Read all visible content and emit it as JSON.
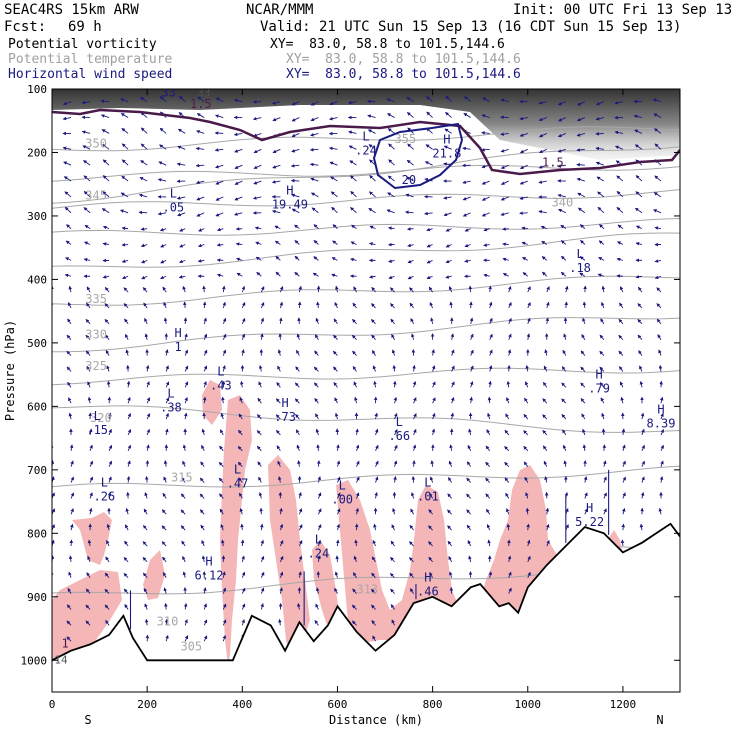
{
  "header": {
    "model": "SEAC4RS 15km ARW",
    "org": "NCAR/MMM",
    "init": "Init: 00 UTC Fri 13 Sep 13",
    "fcst_label": "Fcst:",
    "fcst_value": "69 h",
    "valid": "Valid: 21 UTC Sun 15 Sep 13 (16 CDT Sun 15 Sep 13)",
    "fields": [
      {
        "name": "Potential vorticity",
        "xy": "XY=  83.0, 58.8 to 101.5,144.6",
        "color": "#000000"
      },
      {
        "name": "Potential temperature",
        "xy": "XY=  83.0, 58.8 to 101.5,144.6",
        "color": "#a0a0a0"
      },
      {
        "name": "Horizontal wind speed",
        "xy": "XY=  83.0, 58.8 to 101.5,144.6",
        "color": "#1a1a80"
      }
    ]
  },
  "chart_data": {
    "type": "cross-section",
    "xlabel": "Distance (km)",
    "ylabel": "Pressure (hPa)",
    "xlim": [
      0,
      1320
    ],
    "ylim": [
      1050,
      100
    ],
    "x_ticks": [
      0,
      200,
      400,
      600,
      800,
      1000,
      1200
    ],
    "y_ticks": [
      100,
      200,
      300,
      400,
      500,
      600,
      700,
      800,
      900,
      1000
    ],
    "end_labels": {
      "left": "S",
      "right": "N"
    },
    "colors": {
      "pv_fill": "#f4b6b6",
      "pv_line": "#4a1a4a",
      "theta": "#a8a8a8",
      "wind": "#1a1a80",
      "terrain": "#000000"
    },
    "terrain_surface_hPa": {
      "x_km": [
        0,
        40,
        80,
        120,
        150,
        170,
        200,
        300,
        380,
        420,
        460,
        490,
        520,
        550,
        580,
        600,
        640,
        680,
        720,
        760,
        800,
        840,
        880,
        900,
        940,
        960,
        980,
        1000,
        1040,
        1080,
        1120,
        1160,
        1200,
        1240,
        1270,
        1300,
        1320
      ],
      "p_hPa": [
        1000,
        985,
        975,
        960,
        930,
        965,
        1000,
        1000,
        1000,
        930,
        945,
        985,
        940,
        970,
        945,
        915,
        955,
        985,
        960,
        910,
        900,
        915,
        885,
        880,
        915,
        910,
        925,
        885,
        850,
        820,
        790,
        800,
        830,
        815,
        800,
        785,
        805
      ]
    },
    "theta_contours_K": [
      {
        "level": 305,
        "label_x_km": 270,
        "label_p_hPa": 985
      },
      {
        "level": 310,
        "label_x_km": 220,
        "label_p_hPa": 945
      },
      {
        "level": 313,
        "label_x_km": 640,
        "label_p_hPa": 895
      },
      {
        "level": 315,
        "label_x_km": 250,
        "label_p_hPa": 718
      },
      {
        "level": 320,
        "label_x_km": 80,
        "label_p_hPa": 625
      },
      {
        "level": 325,
        "label_x_km": 70,
        "label_p_hPa": 543
      },
      {
        "level": 330,
        "label_x_km": 70,
        "label_p_hPa": 493
      },
      {
        "level": 335,
        "label_x_km": 70,
        "label_p_hPa": 437
      },
      {
        "level": 340,
        "label_x_km": 1050,
        "label_p_hPa": 285
      },
      {
        "level": 345,
        "label_x_km": 70,
        "label_p_hPa": 274
      },
      {
        "level": 350,
        "label_x_km": 70,
        "label_p_hPa": 192
      },
      {
        "level": 355,
        "label_x_km": 720,
        "label_p_hPa": 185
      }
    ],
    "extrema_labels": [
      {
        "kind": "L",
        "value": ".15",
        "x_km": 95,
        "p_hPa": 640
      },
      {
        "kind": "L",
        "value": ".26",
        "x_km": 110,
        "p_hPa": 745
      },
      {
        "kind": "L",
        "value": ".38",
        "x_km": 250,
        "p_hPa": 605
      },
      {
        "kind": "H",
        "value": "1",
        "x_km": 265,
        "p_hPa": 510
      },
      {
        "kind": "L",
        "value": ".43",
        "x_km": 355,
        "p_hPa": 570
      },
      {
        "kind": "L",
        "value": ".47",
        "x_km": 390,
        "p_hPa": 725
      },
      {
        "kind": "H",
        "value": "6.12",
        "x_km": 330,
        "p_hPa": 870
      },
      {
        "kind": "H",
        "value": ".73",
        "x_km": 490,
        "p_hPa": 620
      },
      {
        "kind": "L",
        "value": ".24",
        "x_km": 560,
        "p_hPa": 835
      },
      {
        "kind": "L",
        "value": ".00",
        "x_km": 610,
        "p_hPa": 750
      },
      {
        "kind": "L",
        "value": ".66",
        "x_km": 730,
        "p_hPa": 650
      },
      {
        "kind": "L",
        "value": ".01",
        "x_km": 790,
        "p_hPa": 745
      },
      {
        "kind": "H",
        "value": ".46",
        "x_km": 790,
        "p_hPa": 895
      },
      {
        "kind": "H",
        "value": "5.22",
        "x_km": 1130,
        "p_hPa": 785
      },
      {
        "kind": "H",
        "value": ".79",
        "x_km": 1150,
        "p_hPa": 575
      },
      {
        "kind": "H",
        "value": "8.39",
        "x_km": 1280,
        "p_hPa": 630
      },
      {
        "kind": "L",
        "value": ".18",
        "x_km": 1110,
        "p_hPa": 385
      },
      {
        "kind": "L",
        "value": ".05",
        "x_km": 255,
        "p_hPa": 290
      },
      {
        "kind": "H",
        "value": "19.49",
        "x_km": 500,
        "p_hPa": 285
      },
      {
        "kind": "L",
        "value": ".24",
        "x_km": 660,
        "p_hPa": 200
      },
      {
        "kind": "H",
        "value": "21.8",
        "x_km": 830,
        "p_hPa": 205
      }
    ],
    "pv_contour_labels": [
      {
        "value": "1.5",
        "x_km": 290,
        "p_hPa": 130
      },
      {
        "value": "1.5",
        "x_km": 1030,
        "p_hPa": 222
      },
      {
        "value": "1",
        "x_km": 20,
        "p_hPa": 980
      },
      {
        "value": "1",
        "x_km": 1290,
        "p_hPa": 100
      }
    ],
    "wind_contour_labels": [
      {
        "value": "20",
        "x_km": 735,
        "p_hPa": 250
      },
      {
        "value": "33",
        "x_km": 230,
        "p_hPa": 112
      }
    ],
    "misc_labels": [
      {
        "value": "14",
        "x_km": 5,
        "p_hPa": 1005
      },
      {
        "value": "33",
        "x_km": 305,
        "p_hPa": 112
      }
    ]
  }
}
